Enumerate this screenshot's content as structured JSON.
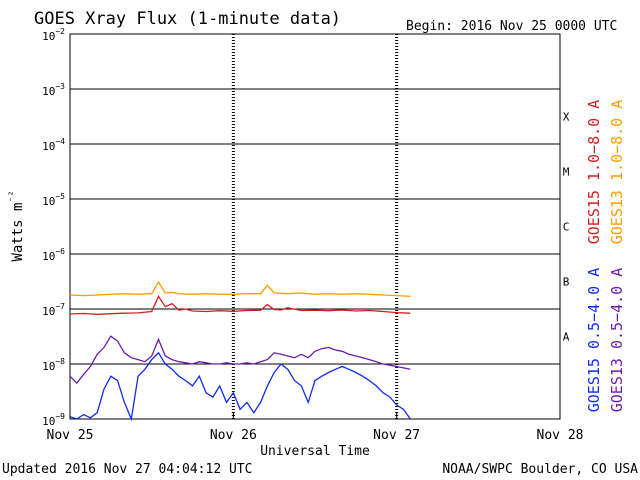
{
  "header": {
    "title": "GOES Xray Flux (1-minute data)",
    "begin": "Begin:  2016 Nov 25 0000 UTC"
  },
  "footer": {
    "updated": "Updated 2016 Nov 27 04:04:12 UTC",
    "credit": "NOAA/SWPC Boulder, CO USA"
  },
  "colors": {
    "goes15_long": "#d41e1e",
    "goes13_long": "#ff9d00",
    "goes15_short": "#0f2cf0",
    "goes13_short": "#6a1cb0",
    "axis": "#000000",
    "background": "#ffffff"
  },
  "chart_data": {
    "type": "line",
    "title": "GOES Xray Flux (1-minute data)",
    "xlabel": "Universal Time",
    "ylabel": "Watts m⁻²",
    "x_unit": "hours since 2016 Nov 25 0000 UTC",
    "xlim": [
      0,
      72
    ],
    "x_ticks": [
      {
        "x": 0,
        "label": "Nov 25"
      },
      {
        "x": 24,
        "label": "Nov 26"
      },
      {
        "x": 48,
        "label": "Nov 27"
      },
      {
        "x": 72,
        "label": "Nov 28"
      }
    ],
    "yscale": "log",
    "ylim": [
      1e-09,
      0.01
    ],
    "y_ticks": [
      {
        "value": 1e-09,
        "base": "10",
        "exp": "-9"
      },
      {
        "value": 1e-08,
        "base": "10",
        "exp": "-8"
      },
      {
        "value": 1e-07,
        "base": "10",
        "exp": "-7"
      },
      {
        "value": 1e-06,
        "base": "10",
        "exp": "-6"
      },
      {
        "value": 1e-05,
        "base": "10",
        "exp": "-5"
      },
      {
        "value": 0.0001,
        "base": "10",
        "exp": "-4"
      },
      {
        "value": 0.001,
        "base": "10",
        "exp": "-3"
      },
      {
        "value": 0.01,
        "base": "10",
        "exp": "-2"
      }
    ],
    "flare_classes": [
      {
        "label": "A",
        "value": 1e-08
      },
      {
        "label": "B",
        "value": 1e-07
      },
      {
        "label": "C",
        "value": 1e-06
      },
      {
        "label": "M",
        "value": 1e-05
      },
      {
        "label": "X",
        "value": 0.0001
      }
    ],
    "grid": true,
    "legend": "right",
    "series": [
      {
        "name": "GOES15 1.0-8.0 A",
        "color_key": "goes15_long",
        "x": [
          0,
          2,
          4,
          6,
          8,
          10,
          12,
          13,
          14,
          15,
          16,
          17,
          18,
          20,
          22,
          24,
          26,
          28,
          29,
          30,
          31,
          32,
          34,
          36,
          38,
          40,
          42,
          44,
          46,
          48,
          50
        ],
        "values": [
          8.1e-08,
          8.3e-08,
          8e-08,
          8.2e-08,
          8.4e-08,
          8.5e-08,
          9e-08,
          1.7e-07,
          1.1e-07,
          1.25e-07,
          9.5e-08,
          1e-07,
          9.2e-08,
          9e-08,
          9.3e-08,
          9.1e-08,
          9.4e-08,
          9.5e-08,
          1.2e-07,
          9.8e-08,
          9.6e-08,
          1.05e-07,
          9.4e-08,
          9.5e-08,
          9.3e-08,
          9.6e-08,
          9.2e-08,
          9.4e-08,
          9e-08,
          8.6e-08,
          8.4e-08
        ]
      },
      {
        "name": "GOES13 1.0-8.0 A",
        "color_key": "goes13_long",
        "x": [
          0,
          2,
          4,
          6,
          8,
          10,
          12,
          13,
          14,
          15,
          16,
          18,
          20,
          22,
          24,
          26,
          28,
          29,
          30,
          32,
          34,
          36,
          38,
          40,
          42,
          44,
          46,
          48,
          50
        ],
        "values": [
          1.8e-07,
          1.75e-07,
          1.8e-07,
          1.85e-07,
          1.9e-07,
          1.85e-07,
          1.9e-07,
          3.1e-07,
          1.95e-07,
          2e-07,
          1.9e-07,
          1.85e-07,
          1.9e-07,
          1.85e-07,
          1.85e-07,
          1.9e-07,
          1.9e-07,
          2.7e-07,
          1.95e-07,
          1.9e-07,
          1.95e-07,
          1.85e-07,
          1.9e-07,
          1.85e-07,
          1.9e-07,
          1.85e-07,
          1.8e-07,
          1.75e-07,
          1.7e-07
        ]
      },
      {
        "name": "GOES15 0.5-4.0 A",
        "color_key": "goes15_short",
        "x": [
          0,
          1,
          2,
          3,
          4,
          5,
          6,
          7,
          8,
          9,
          10,
          11,
          12,
          13,
          14,
          15,
          16,
          17,
          18,
          19,
          20,
          21,
          22,
          23,
          24,
          25,
          26,
          27,
          28,
          29,
          30,
          31,
          32,
          33,
          34,
          35,
          36,
          37,
          38,
          39,
          40,
          41,
          42,
          43,
          44,
          45,
          46,
          47,
          48,
          49,
          50
        ],
        "values": [
          1.1e-09,
          1e-09,
          1.2e-09,
          1.05e-09,
          1.3e-09,
          3.5e-09,
          6e-09,
          5e-09,
          2e-09,
          1e-09,
          6e-09,
          8e-09,
          1.2e-08,
          1.6e-08,
          1e-08,
          8e-09,
          6e-09,
          5e-09,
          4e-09,
          6e-09,
          3e-09,
          2.5e-09,
          4e-09,
          2e-09,
          3e-09,
          1.5e-09,
          2e-09,
          1.3e-09,
          2e-09,
          4e-09,
          7e-09,
          1e-08,
          8e-09,
          5e-09,
          4e-09,
          2e-09,
          5e-09,
          6e-09,
          7e-09,
          8e-09,
          9e-09,
          8e-09,
          7e-09,
          6e-09,
          5e-09,
          4e-09,
          3e-09,
          2.5e-09,
          1.8e-09,
          1.5e-09,
          1e-09
        ]
      },
      {
        "name": "GOES13 0.5-4.0 A",
        "color_key": "goes13_short",
        "x": [
          0,
          1,
          2,
          3,
          4,
          5,
          6,
          7,
          8,
          9,
          10,
          11,
          12,
          13,
          14,
          15,
          16,
          17,
          18,
          19,
          20,
          21,
          22,
          23,
          24,
          25,
          26,
          27,
          28,
          29,
          30,
          31,
          32,
          33,
          34,
          35,
          36,
          37,
          38,
          39,
          40,
          41,
          42,
          43,
          44,
          45,
          46,
          47,
          48,
          49,
          50
        ],
        "values": [
          6e-09,
          4.5e-09,
          6.5e-09,
          9e-09,
          1.5e-08,
          2e-08,
          3.2e-08,
          2.6e-08,
          1.6e-08,
          1.3e-08,
          1.2e-08,
          1.1e-08,
          1.4e-08,
          2.8e-08,
          1.4e-08,
          1.2e-08,
          1.1e-08,
          1.05e-08,
          1e-08,
          1.1e-08,
          1.05e-08,
          1e-08,
          1e-08,
          1.05e-08,
          1e-08,
          1e-08,
          1.05e-08,
          1e-08,
          1.1e-08,
          1.2e-08,
          1.6e-08,
          1.5e-08,
          1.4e-08,
          1.3e-08,
          1.5e-08,
          1.3e-08,
          1.7e-08,
          1.9e-08,
          2e-08,
          1.8e-08,
          1.7e-08,
          1.5e-08,
          1.4e-08,
          1.3e-08,
          1.2e-08,
          1.1e-08,
          1e-08,
          9.5e-09,
          9e-09,
          8.5e-09,
          8e-09
        ]
      }
    ]
  }
}
